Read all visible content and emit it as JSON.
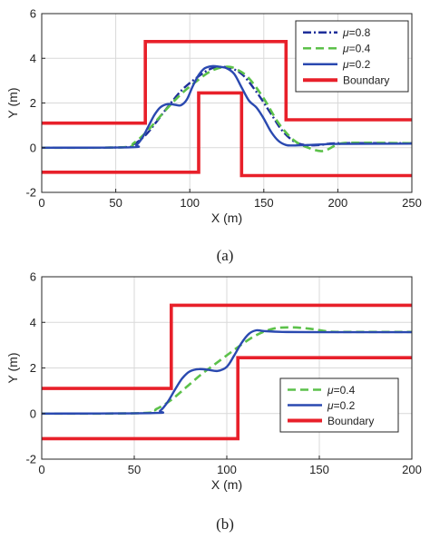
{
  "figure": {
    "caption_a": "(a)",
    "caption_b": "(b)"
  },
  "colors": {
    "mu08": "#1f2f9a",
    "mu04": "#5cc14a",
    "mu02": "#2a49b0",
    "boundary": "#e8202a",
    "grid": "#d9d9d9",
    "axis": "#262626"
  },
  "chart_data": [
    {
      "type": "line",
      "caption": "(a)",
      "xlabel": "X (m)",
      "ylabel": "Y (m)",
      "xlim": [
        0,
        250
      ],
      "ylim": [
        -2,
        6
      ],
      "xticks": [
        0,
        50,
        100,
        150,
        200,
        250
      ],
      "yticks": [
        -2,
        0,
        2,
        4,
        6
      ],
      "grid": true,
      "legend_position": "top-right",
      "series": [
        {
          "name": "μ=0.8",
          "label_prefix": "μ",
          "label_suffix": "=0.8",
          "color": "#1f2f9a",
          "style": "dashdot",
          "x": [
            0,
            55,
            62,
            70,
            78,
            86,
            95,
            105,
            115,
            125,
            135,
            145,
            155,
            162,
            170,
            178,
            188,
            200,
            250
          ],
          "y": [
            0,
            0.02,
            0.15,
            0.55,
            1.2,
            1.9,
            2.6,
            3.15,
            3.55,
            3.6,
            3.3,
            2.5,
            1.5,
            0.8,
            0.3,
            0.12,
            0.12,
            0.2,
            0.2
          ]
        },
        {
          "name": "μ=0.4",
          "label_prefix": "μ",
          "label_suffix": "=0.4",
          "color": "#5cc14a",
          "style": "dashed",
          "x": [
            0,
            55,
            62,
            70,
            78,
            86,
            95,
            105,
            115,
            125,
            132,
            140,
            150,
            160,
            170,
            180,
            190,
            200,
            210,
            250
          ],
          "y": [
            0,
            0.02,
            0.2,
            0.65,
            1.25,
            1.85,
            2.45,
            3.0,
            3.45,
            3.62,
            3.5,
            3.1,
            2.2,
            1.1,
            0.35,
            0.0,
            -0.15,
            0.15,
            0.22,
            0.2
          ]
        },
        {
          "name": "μ=0.2",
          "label_prefix": "μ",
          "label_suffix": "=0.2",
          "color": "#2a49b0",
          "style": "solid",
          "x": [
            0,
            60,
            64,
            68,
            72,
            76,
            80,
            85,
            90,
            94,
            98,
            102,
            106,
            110,
            115,
            120,
            125,
            130,
            135,
            140,
            145,
            150,
            155,
            160,
            165,
            170,
            180,
            190,
            200,
            250
          ],
          "y": [
            0,
            0.02,
            0.12,
            0.45,
            0.95,
            1.45,
            1.8,
            1.95,
            1.92,
            1.9,
            2.15,
            2.75,
            3.25,
            3.55,
            3.65,
            3.62,
            3.55,
            3.3,
            2.7,
            2.1,
            1.8,
            1.3,
            0.7,
            0.3,
            0.12,
            0.1,
            0.12,
            0.15,
            0.17,
            0.18
          ]
        },
        {
          "name": "Boundary",
          "label_prefix": "",
          "label_suffix": "Boundary",
          "color": "#e8202a",
          "style": "boundary",
          "segments": [
            {
              "x": [
                0,
                70,
                70,
                165,
                165,
                250
              ],
              "y": [
                1.1,
                1.1,
                4.75,
                4.75,
                1.25,
                1.25
              ]
            },
            {
              "x": [
                0,
                106,
                106,
                135,
                135,
                250
              ],
              "y": [
                -1.1,
                -1.1,
                2.45,
                2.45,
                -1.25,
                -1.25
              ]
            }
          ]
        }
      ]
    },
    {
      "type": "line",
      "caption": "(b)",
      "xlabel": "X (m)",
      "ylabel": "Y (m)",
      "xlim": [
        0,
        200
      ],
      "ylim": [
        -2,
        6
      ],
      "xticks": [
        0,
        50,
        100,
        150,
        200
      ],
      "yticks": [
        -2,
        0,
        2,
        4,
        6
      ],
      "grid": true,
      "legend_position": "bottom-right",
      "series": [
        {
          "name": "μ=0.4",
          "label_prefix": "μ",
          "label_suffix": "=0.4",
          "color": "#5cc14a",
          "style": "dashed",
          "x": [
            0,
            55,
            62,
            70,
            78,
            86,
            95,
            105,
            115,
            125,
            135,
            145,
            155,
            165,
            200
          ],
          "y": [
            0,
            0.02,
            0.2,
            0.6,
            1.15,
            1.7,
            2.25,
            2.85,
            3.4,
            3.72,
            3.78,
            3.72,
            3.6,
            3.58,
            3.58
          ]
        },
        {
          "name": "μ=0.2",
          "label_prefix": "μ",
          "label_suffix": "=0.2",
          "color": "#2a49b0",
          "style": "solid",
          "x": [
            0,
            60,
            64,
            68,
            72,
            76,
            80,
            85,
            90,
            95,
            100,
            104,
            108,
            112,
            116,
            120,
            130,
            150,
            200
          ],
          "y": [
            0,
            0.02,
            0.12,
            0.5,
            1.05,
            1.55,
            1.85,
            1.95,
            1.92,
            1.87,
            2.05,
            2.55,
            3.1,
            3.5,
            3.65,
            3.62,
            3.58,
            3.57,
            3.57
          ]
        },
        {
          "name": "Boundary",
          "label_prefix": "",
          "label_suffix": "Boundary",
          "color": "#e8202a",
          "style": "boundary",
          "segments": [
            {
              "x": [
                0,
                70,
                70,
                200
              ],
              "y": [
                1.1,
                1.1,
                4.75,
                4.75
              ]
            },
            {
              "x": [
                0,
                106,
                106,
                200
              ],
              "y": [
                -1.1,
                -1.1,
                2.45,
                2.45
              ]
            }
          ]
        }
      ]
    }
  ]
}
